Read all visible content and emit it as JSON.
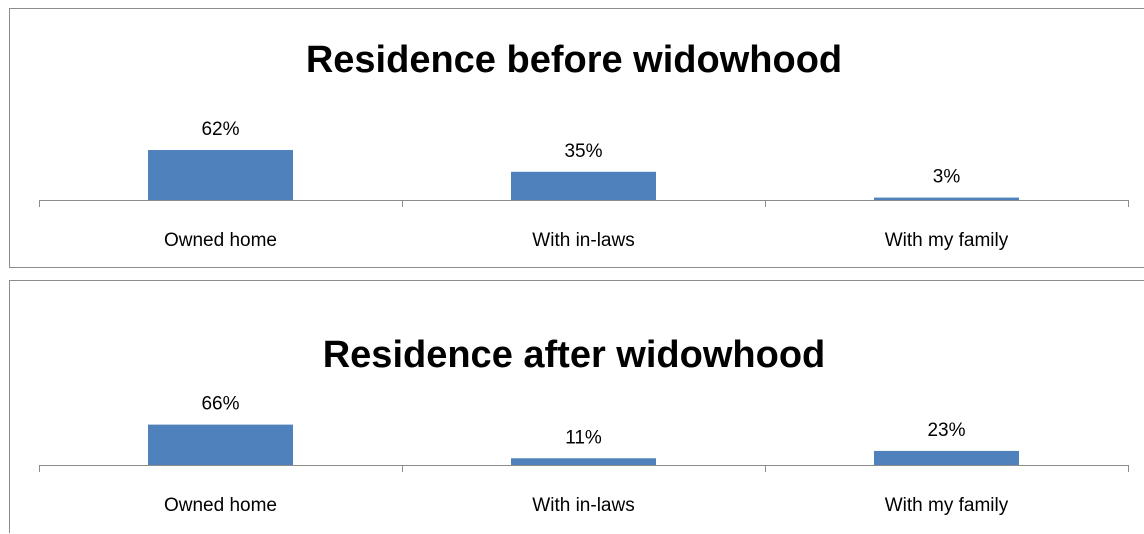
{
  "chart_data": [
    {
      "type": "bar",
      "title": "Residence before widowhood",
      "categories": [
        "Owned home",
        "With in-laws",
        "With my family"
      ],
      "values": [
        62,
        35,
        3
      ],
      "data_labels": [
        "62%",
        "35%",
        "3%"
      ],
      "unit": "%",
      "ylim": [
        0,
        100
      ],
      "grid": false,
      "legend": "none",
      "bar_color": "#4f81bd"
    },
    {
      "type": "bar",
      "title": "Residence after widowhood",
      "categories": [
        "Owned home",
        "With in-laws",
        "With my family"
      ],
      "values": [
        66,
        11,
        23
      ],
      "data_labels": [
        "66%",
        "11%",
        "23%"
      ],
      "unit": "%",
      "ylim": [
        0,
        100
      ],
      "grid": false,
      "legend": "none",
      "bar_color": "#4f81bd"
    }
  ]
}
